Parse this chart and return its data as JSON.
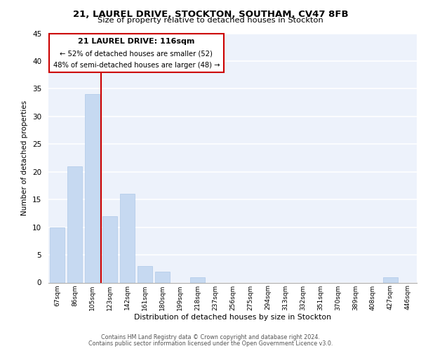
{
  "title": "21, LAUREL DRIVE, STOCKTON, SOUTHAM, CV47 8FB",
  "subtitle": "Size of property relative to detached houses in Stockton",
  "xlabel": "Distribution of detached houses by size in Stockton",
  "ylabel": "Number of detached properties",
  "bar_labels": [
    "67sqm",
    "86sqm",
    "105sqm",
    "123sqm",
    "142sqm",
    "161sqm",
    "180sqm",
    "199sqm",
    "218sqm",
    "237sqm",
    "256sqm",
    "275sqm",
    "294sqm",
    "313sqm",
    "332sqm",
    "351sqm",
    "370sqm",
    "389sqm",
    "408sqm",
    "427sqm",
    "446sqm"
  ],
  "bar_values": [
    10,
    21,
    34,
    12,
    16,
    3,
    2,
    0,
    1,
    0,
    0,
    0,
    0,
    0,
    0,
    0,
    0,
    0,
    0,
    1,
    0
  ],
  "bar_color": "#c6d9f1",
  "marker_bar_index": 2,
  "annotation_line1": "21 LAUREL DRIVE: 116sqm",
  "annotation_line2": "← 52% of detached houses are smaller (52)",
  "annotation_line3": "48% of semi-detached houses are larger (48) →",
  "marker_color": "#cc0000",
  "ylim": [
    0,
    45
  ],
  "yticks": [
    0,
    5,
    10,
    15,
    20,
    25,
    30,
    35,
    40,
    45
  ],
  "bg_color": "#edf2fb",
  "footer1": "Contains HM Land Registry data © Crown copyright and database right 2024.",
  "footer2": "Contains public sector information licensed under the Open Government Licence v3.0."
}
